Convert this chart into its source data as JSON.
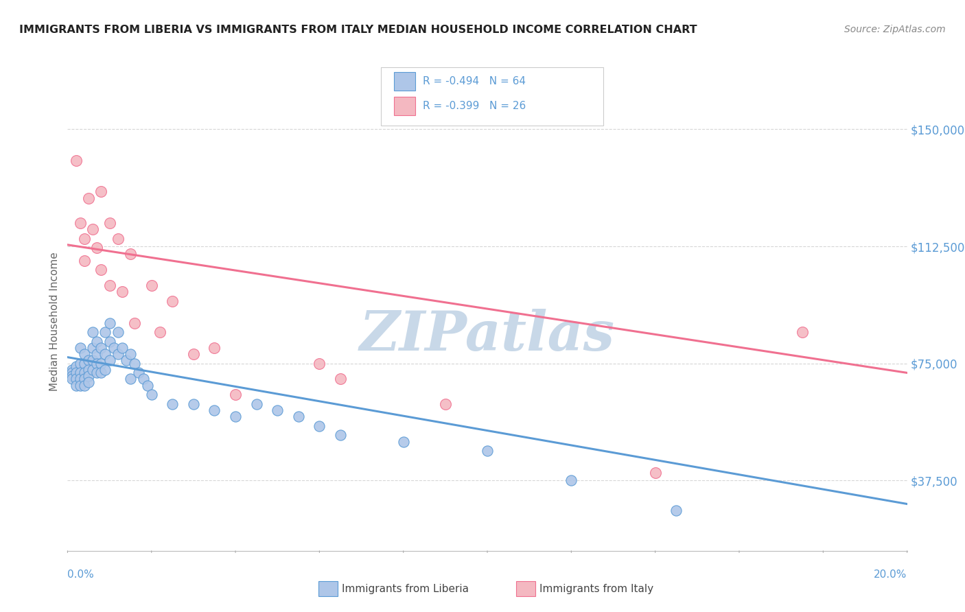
{
  "title": "IMMIGRANTS FROM LIBERIA VS IMMIGRANTS FROM ITALY MEDIAN HOUSEHOLD INCOME CORRELATION CHART",
  "source": "Source: ZipAtlas.com",
  "ylabel": "Median Household Income",
  "xmin": 0.0,
  "xmax": 0.2,
  "ymin": 15000,
  "ymax": 162000,
  "yticks": [
    37500,
    75000,
    112500,
    150000
  ],
  "ytick_labels": [
    "$37,500",
    "$75,000",
    "$112,500",
    "$150,000"
  ],
  "xtick_labels": [
    "0.0%",
    "20.0%"
  ],
  "legend_r1": "R = -0.494",
  "legend_n1": "N = 64",
  "legend_r2": "R = -0.399",
  "legend_n2": "N = 26",
  "liberia_color": "#aec6e8",
  "italy_color": "#f4b8c1",
  "liberia_line_color": "#5b9bd5",
  "italy_line_color": "#f07090",
  "grid_color": "#cccccc",
  "watermark_color": "#c8d8e8",
  "background_color": "#ffffff",
  "liberia_points": [
    [
      0.001,
      73000
    ],
    [
      0.001,
      72000
    ],
    [
      0.001,
      71000
    ],
    [
      0.001,
      70000
    ],
    [
      0.002,
      74000
    ],
    [
      0.002,
      72000
    ],
    [
      0.002,
      70000
    ],
    [
      0.002,
      68000
    ],
    [
      0.003,
      80000
    ],
    [
      0.003,
      75000
    ],
    [
      0.003,
      72000
    ],
    [
      0.003,
      70000
    ],
    [
      0.003,
      68000
    ],
    [
      0.004,
      78000
    ],
    [
      0.004,
      75000
    ],
    [
      0.004,
      72000
    ],
    [
      0.004,
      70000
    ],
    [
      0.004,
      68000
    ],
    [
      0.005,
      76000
    ],
    [
      0.005,
      73000
    ],
    [
      0.005,
      71000
    ],
    [
      0.005,
      69000
    ],
    [
      0.006,
      85000
    ],
    [
      0.006,
      80000
    ],
    [
      0.006,
      76000
    ],
    [
      0.006,
      73000
    ],
    [
      0.007,
      82000
    ],
    [
      0.007,
      78000
    ],
    [
      0.007,
      75000
    ],
    [
      0.007,
      72000
    ],
    [
      0.008,
      80000
    ],
    [
      0.008,
      75000
    ],
    [
      0.008,
      72000
    ],
    [
      0.009,
      85000
    ],
    [
      0.009,
      78000
    ],
    [
      0.009,
      73000
    ],
    [
      0.01,
      88000
    ],
    [
      0.01,
      82000
    ],
    [
      0.01,
      76000
    ],
    [
      0.011,
      80000
    ],
    [
      0.012,
      85000
    ],
    [
      0.012,
      78000
    ],
    [
      0.013,
      80000
    ],
    [
      0.014,
      76000
    ],
    [
      0.015,
      78000
    ],
    [
      0.015,
      70000
    ],
    [
      0.016,
      75000
    ],
    [
      0.017,
      72000
    ],
    [
      0.018,
      70000
    ],
    [
      0.019,
      68000
    ],
    [
      0.02,
      65000
    ],
    [
      0.025,
      62000
    ],
    [
      0.03,
      62000
    ],
    [
      0.035,
      60000
    ],
    [
      0.04,
      58000
    ],
    [
      0.045,
      62000
    ],
    [
      0.05,
      60000
    ],
    [
      0.055,
      58000
    ],
    [
      0.06,
      55000
    ],
    [
      0.065,
      52000
    ],
    [
      0.08,
      50000
    ],
    [
      0.1,
      47000
    ],
    [
      0.12,
      37500
    ],
    [
      0.145,
      28000
    ]
  ],
  "italy_points": [
    [
      0.002,
      140000
    ],
    [
      0.003,
      120000
    ],
    [
      0.004,
      115000
    ],
    [
      0.004,
      108000
    ],
    [
      0.005,
      128000
    ],
    [
      0.006,
      118000
    ],
    [
      0.007,
      112000
    ],
    [
      0.008,
      105000
    ],
    [
      0.008,
      130000
    ],
    [
      0.01,
      120000
    ],
    [
      0.01,
      100000
    ],
    [
      0.012,
      115000
    ],
    [
      0.013,
      98000
    ],
    [
      0.015,
      110000
    ],
    [
      0.016,
      88000
    ],
    [
      0.02,
      100000
    ],
    [
      0.022,
      85000
    ],
    [
      0.025,
      95000
    ],
    [
      0.03,
      78000
    ],
    [
      0.035,
      80000
    ],
    [
      0.04,
      65000
    ],
    [
      0.06,
      75000
    ],
    [
      0.065,
      70000
    ],
    [
      0.09,
      62000
    ],
    [
      0.14,
      40000
    ],
    [
      0.175,
      85000
    ]
  ],
  "liberia_trendline_x": [
    0.0,
    0.2
  ],
  "liberia_trendline_y": [
    77000,
    30000
  ],
  "italy_trendline_x": [
    0.0,
    0.2
  ],
  "italy_trendline_y": [
    113000,
    72000
  ]
}
